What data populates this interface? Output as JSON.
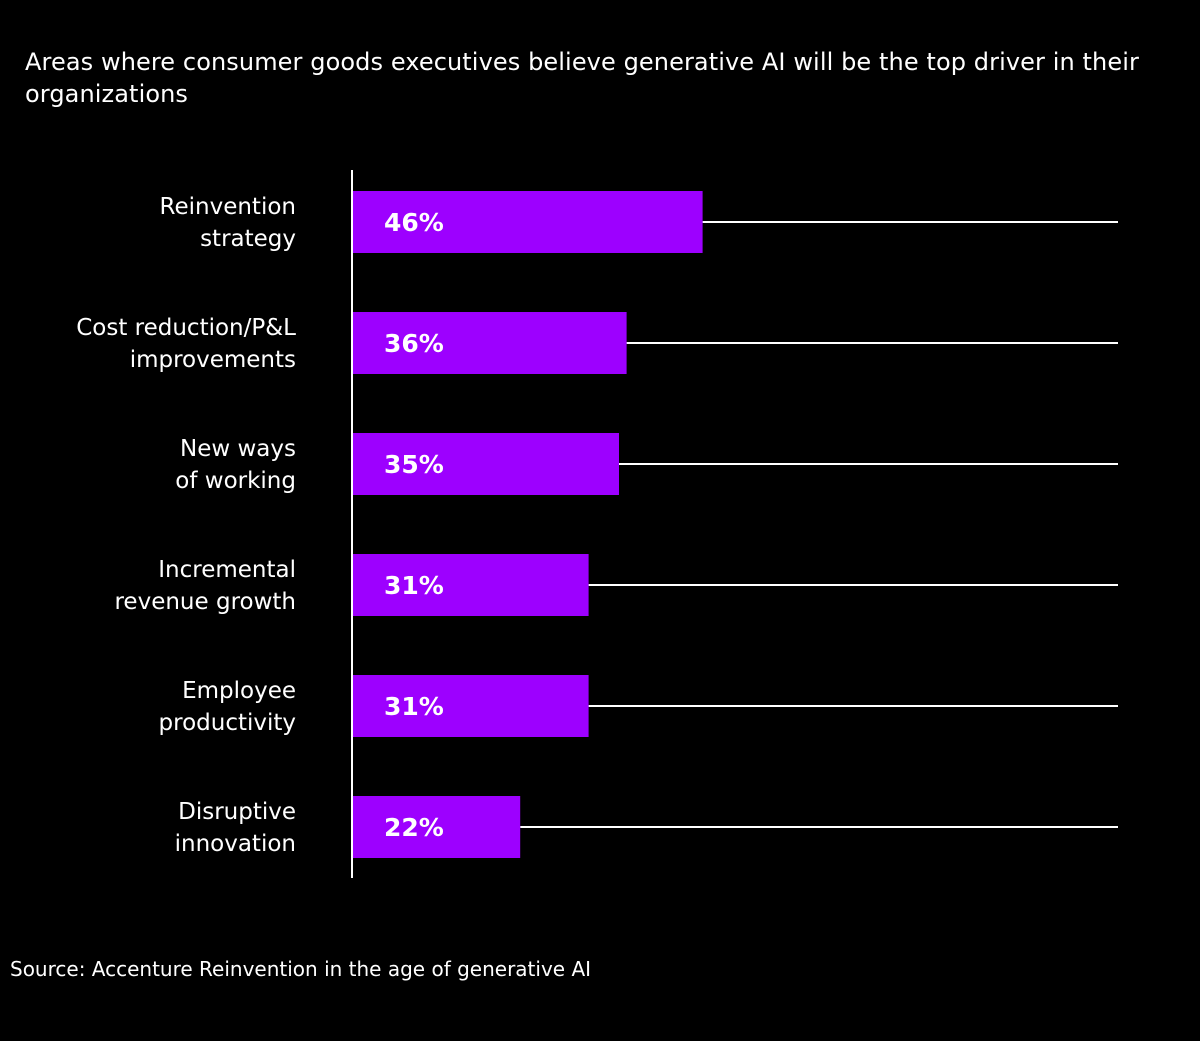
{
  "chart_data": {
    "type": "bar",
    "orientation": "horizontal",
    "title": "Areas where consumer goods executives believe generative AI will be the top driver in their organizations",
    "categories": [
      [
        "Reinvention",
        "strategy"
      ],
      [
        "Cost reduction/P&L",
        "improvements"
      ],
      [
        "New ways",
        "of working"
      ],
      [
        "Incremental",
        "revenue growth"
      ],
      [
        "Employee",
        "productivity"
      ],
      [
        "Disruptive",
        "innovation"
      ]
    ],
    "values": [
      46,
      36,
      35,
      31,
      31,
      22
    ],
    "data_labels": [
      "46%",
      "36%",
      "35%",
      "31%",
      "31%",
      "22%"
    ],
    "xlim": [
      0,
      100
    ],
    "bar_color": "#9d00ff",
    "background_color": "#000000",
    "text_color": "#ffffff",
    "grid": false
  },
  "source": "Source: Accenture Reinvention in the age of generative AI"
}
